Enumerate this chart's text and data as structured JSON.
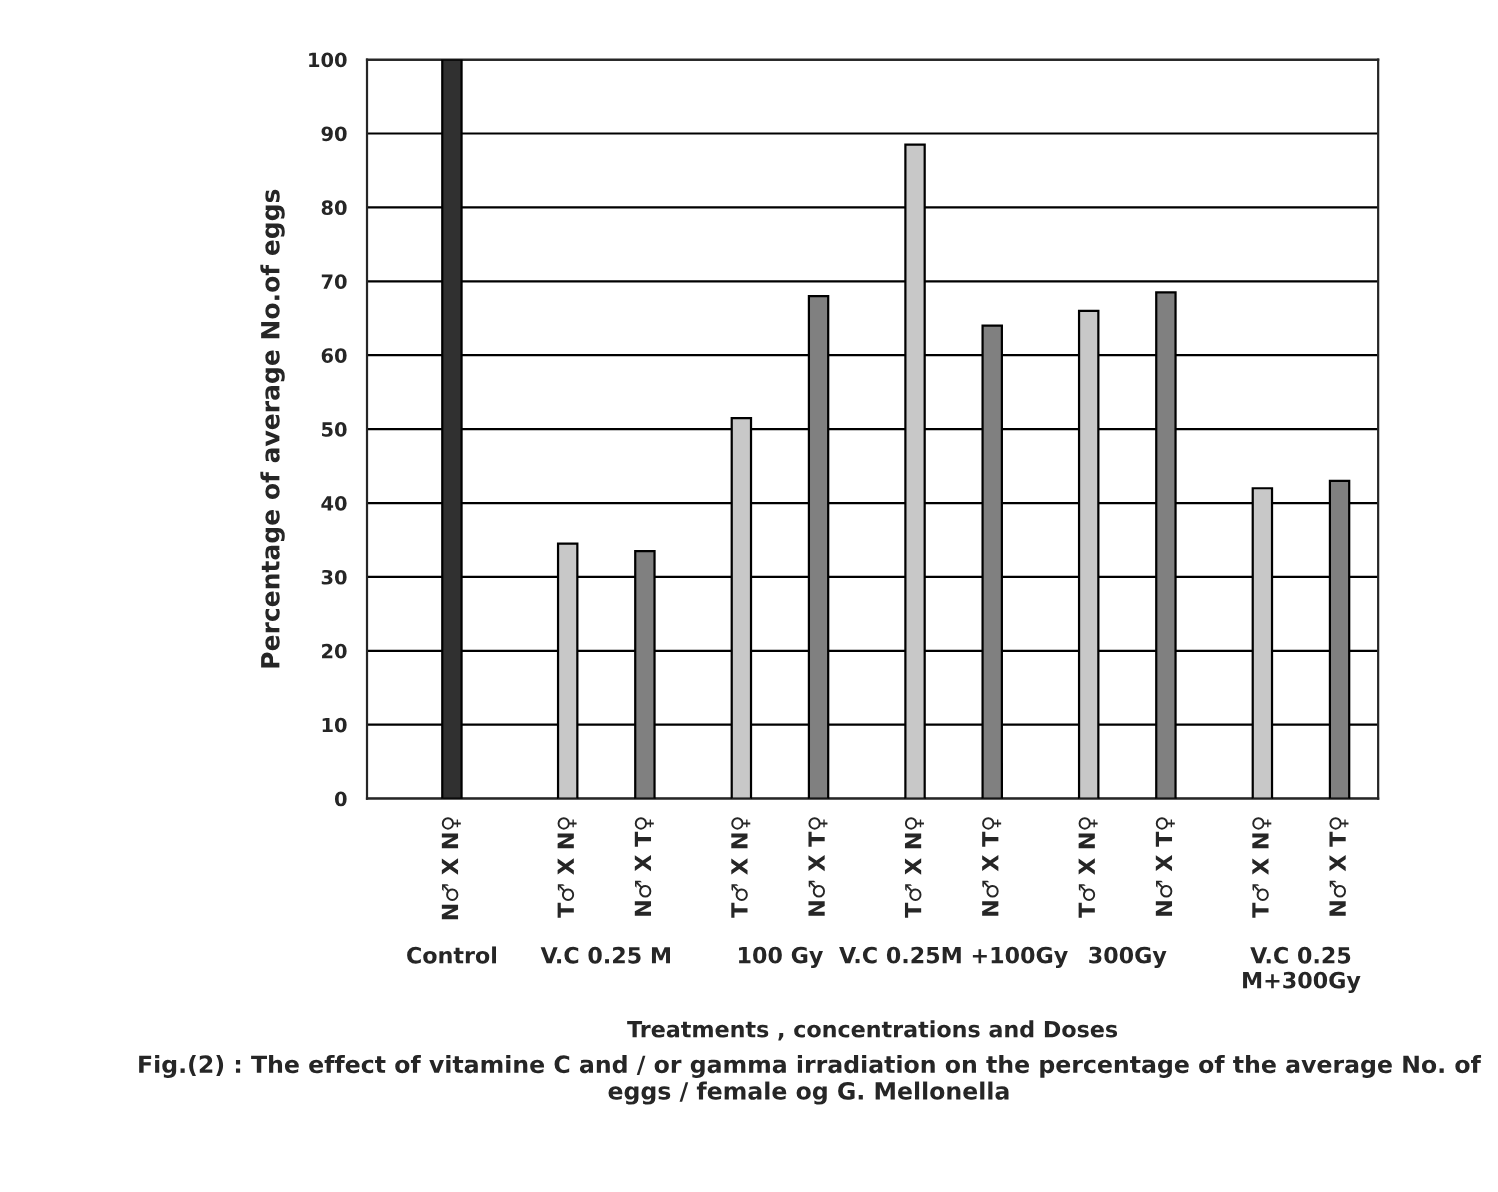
{
  "chart_data": {
    "type": "bar",
    "title": "Fig.(2) : The effect of vitamine C and / or gamma irradiation on the percentage of the average No. of eggs / female og G. Mellonella",
    "xlabel": "Treatments , concentrations and Doses",
    "ylabel": "Percentage of average No.of eggs",
    "categories": [
      "N♂ X N♀",
      "T♂ X N♀",
      "N♂ X T♀",
      "T♂ X N♀",
      "N♂ X T♀",
      "T♂ X N♀",
      "N♂ X T♀",
      "T♂ X N♀",
      "N♂ X T♀",
      "T♂ X N♀",
      "N♂ X T♀"
    ],
    "values": [
      100,
      34.5,
      33.5,
      51.5,
      68,
      88.5,
      64,
      66,
      68.5,
      42,
      43
    ],
    "colors": [
      "#303030",
      "#c8c8c8",
      "#808080",
      "#c8c8c8",
      "#808080",
      "#c8c8c8",
      "#808080",
      "#c8c8c8",
      "#808080",
      "#c8c8c8",
      "#808080"
    ],
    "annotations": [
      "Control",
      "V.C 0.25 M",
      "100 Gy",
      "V.C 0.25M +100Gy",
      "300Gy",
      "V.C 0.25\nM+300Gy"
    ],
    "ylim": [
      0,
      100
    ],
    "yticks": [
      0,
      10,
      20,
      30,
      40,
      50,
      60,
      70,
      80,
      90,
      100
    ],
    "grid": "y",
    "legend": false
  }
}
